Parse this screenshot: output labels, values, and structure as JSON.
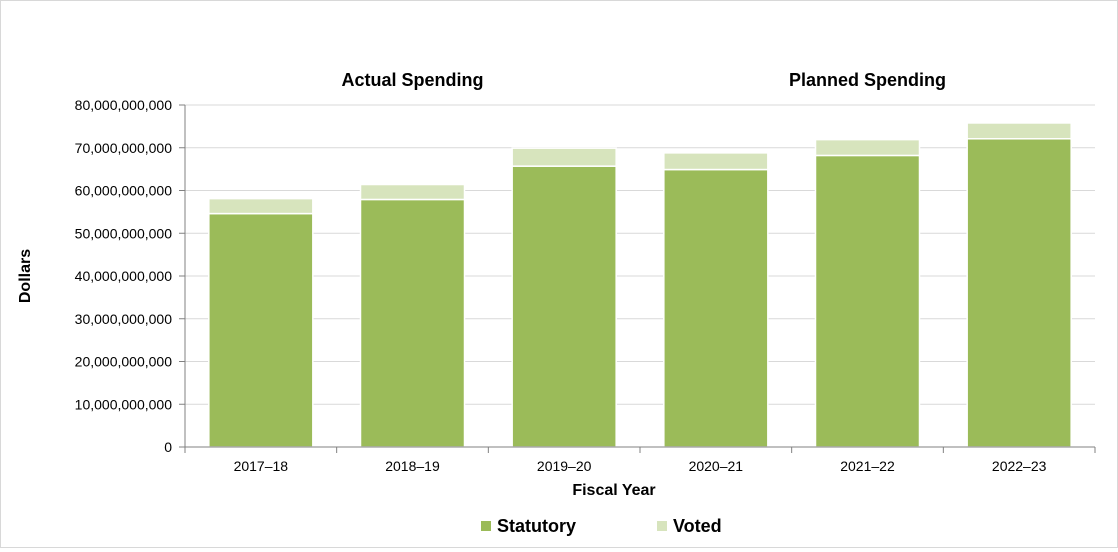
{
  "chart_data": {
    "type": "bar",
    "stacked": true,
    "group_titles": [
      "Actual Spending",
      "Planned Spending"
    ],
    "xlabel": "Fiscal Year",
    "ylabel": "Dollars",
    "ylim": [
      0,
      80000000000
    ],
    "y_ticks": [
      "0",
      "10,000,000,000",
      "20,000,000,000",
      "30,000,000,000",
      "40,000,000,000",
      "50,000,000,000",
      "60,000,000,000",
      "70,000,000,000",
      "80,000,000,000"
    ],
    "categories": [
      "2017–18",
      "2018–19",
      "2019–20",
      "2020–21",
      "2021–22",
      "2022–23"
    ],
    "series": [
      {
        "name": "Statutory",
        "color": "#9bbb59",
        "values": [
          54600000000,
          57900000000,
          65700000000,
          64900000000,
          68200000000,
          72100000000
        ]
      },
      {
        "name": "Voted",
        "color": "#d7e4bd",
        "values": [
          3500000000,
          3500000000,
          4200000000,
          3900000000,
          3700000000,
          3700000000
        ]
      }
    ],
    "grid": true,
    "legend": "bottom"
  }
}
